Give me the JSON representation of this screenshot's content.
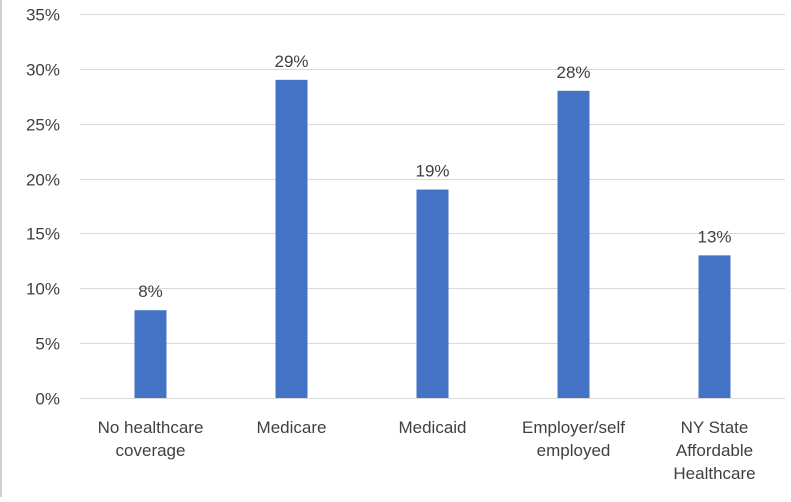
{
  "chart_data": {
    "type": "bar",
    "title": "",
    "xlabel": "",
    "ylabel": "",
    "categories": [
      [
        "No healthcare",
        "coverage"
      ],
      [
        "Medicare"
      ],
      [
        "Medicaid"
      ],
      [
        "Employer/self",
        "employed"
      ],
      [
        "NY State",
        "Affordable",
        "Healthcare"
      ]
    ],
    "values": [
      8,
      29,
      19,
      28,
      13
    ],
    "data_labels": [
      "8%",
      "29%",
      "19%",
      "28%",
      "13%"
    ],
    "y_ticks": [
      "0%",
      "5%",
      "10%",
      "15%",
      "20%",
      "25%",
      "30%",
      "35%"
    ],
    "ylim": [
      0,
      35
    ],
    "grid": true,
    "legend": "none",
    "colors": {
      "bar": "#4472C4",
      "grid": "#d9d9d9",
      "text": "#404040"
    }
  }
}
